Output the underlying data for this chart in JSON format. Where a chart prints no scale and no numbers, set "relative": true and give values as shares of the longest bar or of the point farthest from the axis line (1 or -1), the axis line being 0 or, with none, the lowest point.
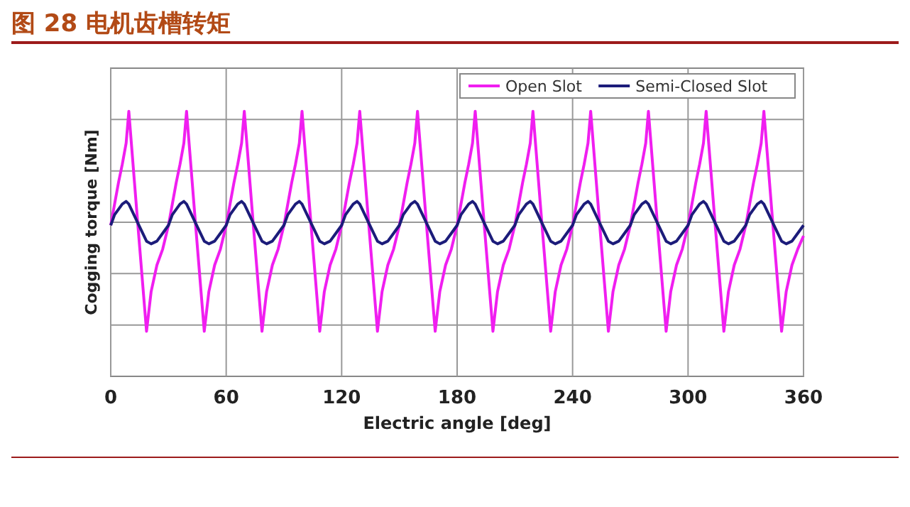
{
  "chart_data": {
    "type": "line",
    "title": "图 28  电机齿槽转矩",
    "xlabel": "Electric angle [deg]",
    "ylabel": "Cogging torque [Nm]",
    "relative": true,
    "x": [
      0,
      2,
      4,
      6,
      8,
      9.4,
      14,
      18.6,
      21,
      24,
      27,
      30,
      32,
      34,
      36,
      38,
      39.4,
      44,
      48.6,
      51,
      54,
      57,
      60,
      62,
      64,
      66,
      68,
      69.4,
      74,
      78.6,
      81,
      84,
      87,
      90,
      92,
      94,
      96,
      98,
      99.4,
      104,
      108.6,
      111,
      114,
      117,
      120,
      122,
      124,
      126,
      128,
      129.4,
      134,
      138.6,
      141,
      144,
      147,
      150,
      152,
      154,
      156,
      158,
      159.4,
      164,
      168.6,
      171,
      174,
      177,
      180,
      182,
      184,
      186,
      188,
      189.4,
      194,
      198.6,
      201,
      204,
      207,
      210,
      212,
      214,
      216,
      218,
      219.4,
      224,
      228.6,
      231,
      234,
      237,
      240,
      242,
      244,
      246,
      248,
      249.4,
      254,
      258.6,
      261,
      264,
      267,
      270,
      272,
      274,
      276,
      278,
      279.4,
      284,
      288.6,
      291,
      294,
      297,
      300,
      302,
      304,
      306,
      308,
      309.4,
      314,
      318.6,
      321,
      324,
      327,
      330,
      332,
      334,
      336,
      338,
      339.4,
      344,
      348.6,
      351,
      354,
      357,
      360
    ],
    "xlim": [
      0,
      360
    ],
    "xticks": [
      0,
      60,
      120,
      180,
      240,
      300,
      360
    ],
    "grid": true,
    "legend": "top right",
    "marker": "none",
    "line_style": "solid",
    "series": [
      {
        "name": "Open Slot",
        "color": "#f01ef0",
        "values": [
          0.57,
          0.65,
          0.73,
          0.8,
          0.88,
          1,
          0.58,
          0.17,
          0.32,
          0.42,
          0.48,
          0.57,
          0.65,
          0.73,
          0.8,
          0.88,
          1,
          0.58,
          0.17,
          0.32,
          0.42,
          0.48,
          0.57,
          0.65,
          0.73,
          0.8,
          0.88,
          1,
          0.58,
          0.17,
          0.32,
          0.42,
          0.48,
          0.57,
          0.65,
          0.73,
          0.8,
          0.88,
          1,
          0.58,
          0.17,
          0.32,
          0.42,
          0.48,
          0.57,
          0.65,
          0.73,
          0.8,
          0.88,
          1,
          0.58,
          0.17,
          0.32,
          0.42,
          0.48,
          0.57,
          0.65,
          0.73,
          0.8,
          0.88,
          1,
          0.58,
          0.17,
          0.32,
          0.42,
          0.48,
          0.57,
          0.65,
          0.73,
          0.8,
          0.88,
          1,
          0.58,
          0.17,
          0.32,
          0.42,
          0.48,
          0.57,
          0.65,
          0.73,
          0.8,
          0.88,
          1,
          0.58,
          0.17,
          0.32,
          0.42,
          0.48,
          0.57,
          0.65,
          0.73,
          0.8,
          0.88,
          1,
          0.58,
          0.17,
          0.32,
          0.42,
          0.48,
          0.57,
          0.65,
          0.73,
          0.8,
          0.88,
          1,
          0.58,
          0.17,
          0.32,
          0.42,
          0.48,
          0.57,
          0.65,
          0.73,
          0.8,
          0.88,
          1,
          0.58,
          0.17,
          0.32,
          0.42,
          0.48,
          0.57,
          0.65,
          0.73,
          0.8,
          0.88,
          1,
          0.58,
          0.17,
          0.32,
          0.42,
          0.48,
          0.53
        ]
      },
      {
        "name": "Semi-Closed Slot",
        "color": "#1c1c7a",
        "values": [
          0.57,
          0.61,
          0.63,
          0.65,
          0.66,
          0.65,
          0.58,
          0.51,
          0.5,
          0.51,
          0.54,
          0.57,
          0.61,
          0.63,
          0.65,
          0.66,
          0.65,
          0.58,
          0.51,
          0.5,
          0.51,
          0.54,
          0.57,
          0.61,
          0.63,
          0.65,
          0.66,
          0.65,
          0.58,
          0.51,
          0.5,
          0.51,
          0.54,
          0.57,
          0.61,
          0.63,
          0.65,
          0.66,
          0.65,
          0.58,
          0.51,
          0.5,
          0.51,
          0.54,
          0.57,
          0.61,
          0.63,
          0.65,
          0.66,
          0.65,
          0.58,
          0.51,
          0.5,
          0.51,
          0.54,
          0.57,
          0.61,
          0.63,
          0.65,
          0.66,
          0.65,
          0.58,
          0.51,
          0.5,
          0.51,
          0.54,
          0.57,
          0.61,
          0.63,
          0.65,
          0.66,
          0.65,
          0.58,
          0.51,
          0.5,
          0.51,
          0.54,
          0.57,
          0.61,
          0.63,
          0.65,
          0.66,
          0.65,
          0.58,
          0.51,
          0.5,
          0.51,
          0.54,
          0.57,
          0.61,
          0.63,
          0.65,
          0.66,
          0.65,
          0.58,
          0.51,
          0.5,
          0.51,
          0.54,
          0.57,
          0.61,
          0.63,
          0.65,
          0.66,
          0.65,
          0.58,
          0.51,
          0.5,
          0.51,
          0.54,
          0.57,
          0.61,
          0.63,
          0.65,
          0.66,
          0.65,
          0.58,
          0.51,
          0.5,
          0.51,
          0.54,
          0.57,
          0.61,
          0.63,
          0.65,
          0.66,
          0.65,
          0.58,
          0.51,
          0.5,
          0.51,
          0.54,
          0.57
        ]
      }
    ]
  }
}
